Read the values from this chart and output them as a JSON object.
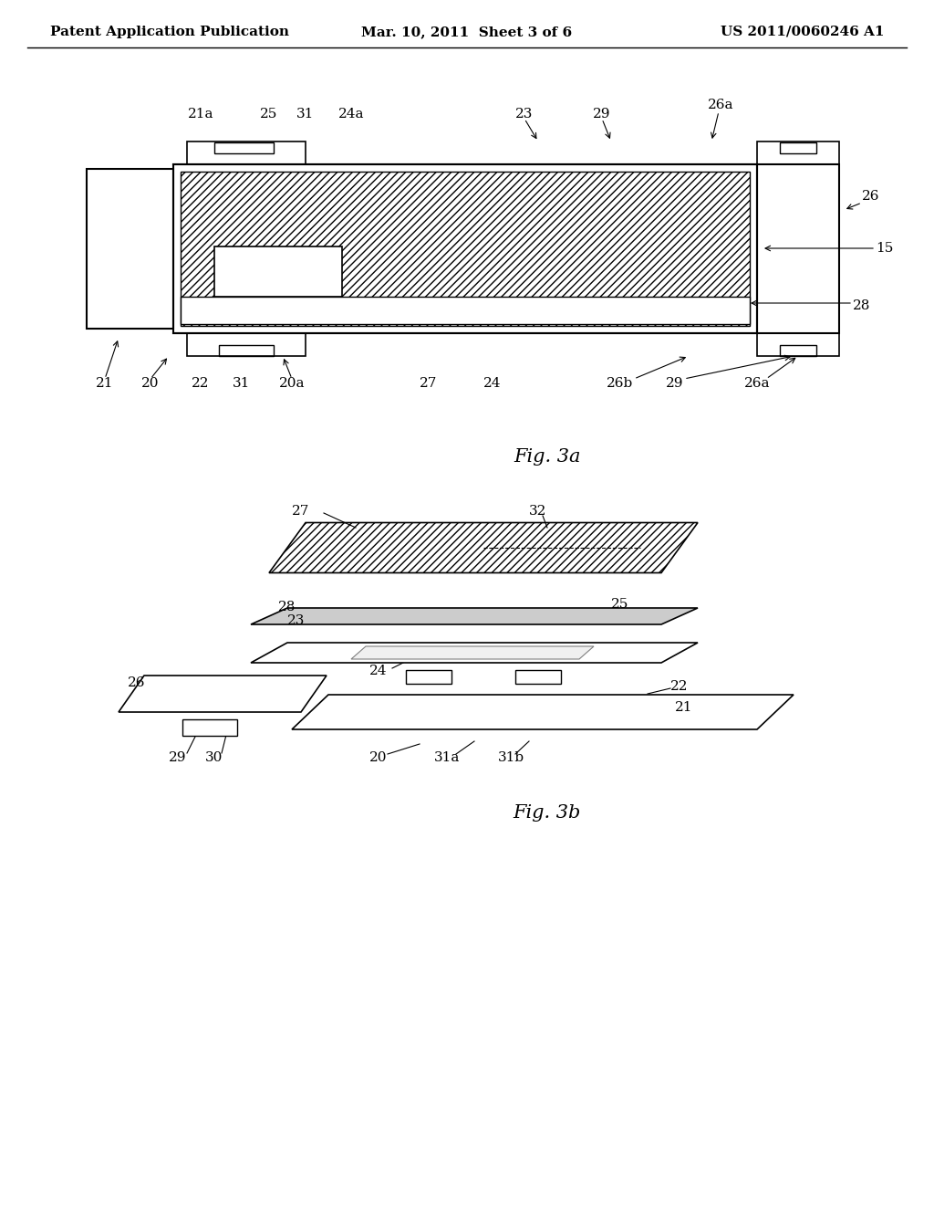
{
  "bg_color": "#ffffff",
  "line_color": "#000000",
  "hatch_color": "#555555",
  "header_left": "Patent Application Publication",
  "header_center": "Mar. 10, 2011  Sheet 3 of 6",
  "header_right": "US 2011/0060246 A1",
  "fig3a_label": "Fig. 3a",
  "fig3b_label": "Fig. 3b",
  "font_size_header": 11,
  "font_size_label": 13,
  "font_size_annotation": 11
}
